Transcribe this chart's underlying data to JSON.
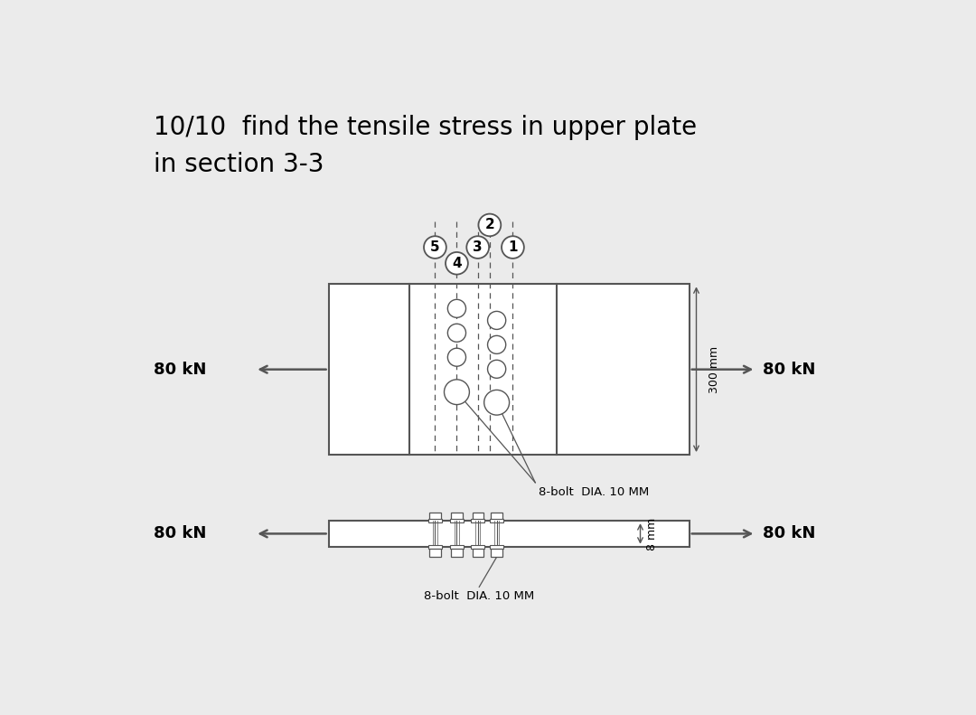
{
  "title_line1": "10/10  find the tensile stress in upper plate",
  "title_line2": "in section 3-3",
  "title_fontsize": 20,
  "bg_color": "#ebebeb",
  "gray": "#555555",
  "force_label": "80 kN",
  "bolt_label_top": "8-bolt  DIA. 10 MM",
  "bolt_label_bottom": "8-bolt  DIA. 10 MM",
  "dim_label_300": "300 mm",
  "dim_label_8": "8 mm",
  "section_labels": [
    "1",
    "2",
    "3",
    "4",
    "5"
  ]
}
